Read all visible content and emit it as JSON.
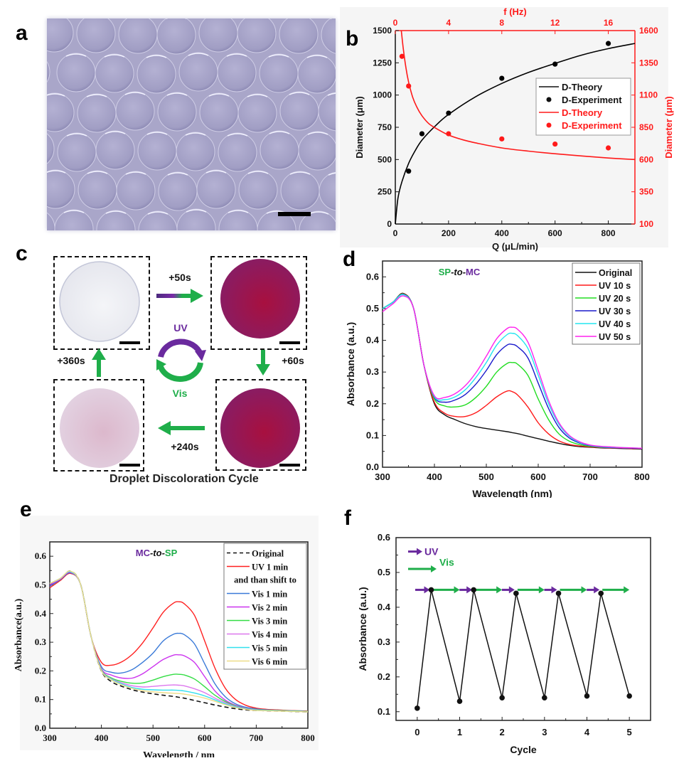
{
  "panels": {
    "a": {
      "label": "a",
      "description": "Microscope image of packed droplets with scale bar"
    },
    "b": {
      "label": "b"
    },
    "c": {
      "label": "c",
      "caption": "Droplet Discoloration Cycle",
      "steps": [
        "+50s",
        "+60s",
        "+240s",
        "+360s"
      ],
      "cycle_labels": {
        "uv": "UV",
        "vis": "Vis"
      },
      "colors": {
        "uv": "#6a2a9e",
        "vis": "#1fae4a",
        "droplet_colored": "#9c1350",
        "droplet_faded": "#d9b9d2",
        "droplet_clear": "#eef0f4"
      }
    },
    "d": {
      "label": "d"
    },
    "e": {
      "label": "e"
    },
    "f": {
      "label": "f"
    }
  },
  "chart_data": [
    {
      "id": "b",
      "type": "scatter",
      "title": "",
      "xlabel": "Q (μL/min)",
      "ylabel": "Diameter (μm)",
      "x2label": "f (Hz)",
      "y2label": "Diameter (μm)",
      "xlim": [
        0,
        900
      ],
      "ylim": [
        0,
        1500
      ],
      "x2lim": [
        0,
        18
      ],
      "y2lim": [
        100,
        1600
      ],
      "xticks": [
        "0",
        "200",
        "400",
        "600",
        "800"
      ],
      "yticks": [
        "0",
        "250",
        "500",
        "750",
        "1000",
        "1250",
        "1500"
      ],
      "x2ticks": [
        "0",
        "4",
        "8",
        "12",
        "16"
      ],
      "y2ticks": [
        "100",
        "350",
        "600",
        "850",
        "1100",
        "1350",
        "1600"
      ],
      "legend": [
        "D-Theory",
        "D-Experiment",
        "D-Theory",
        "D-Experiment"
      ],
      "legend_position": "center-right",
      "series": [
        {
          "name": "D-Theory",
          "axis": "primary",
          "color": "#000000",
          "style": "line",
          "x": [
            0,
            10,
            25,
            50,
            75,
            100,
            150,
            200,
            300,
            400,
            500,
            600,
            700,
            800,
            900
          ],
          "y": [
            0,
            200,
            330,
            470,
            570,
            650,
            760,
            850,
            985,
            1090,
            1175,
            1245,
            1310,
            1360,
            1400
          ]
        },
        {
          "name": "D-Experiment",
          "axis": "primary",
          "color": "#000000",
          "style": "marker",
          "x": [
            50,
            100,
            200,
            400,
            600,
            800
          ],
          "y": [
            410,
            700,
            860,
            1130,
            1240,
            1400
          ]
        },
        {
          "name": "D-Theory",
          "axis": "secondary",
          "color": "#ff1a1a",
          "style": "line",
          "x": [
            0.45,
            0.6,
            0.8,
            1.0,
            1.3,
            1.6,
            2,
            2.5,
            3,
            4,
            5,
            6,
            8,
            10,
            12,
            14,
            16,
            18
          ],
          "y": [
            1600,
            1460,
            1310,
            1200,
            1085,
            1010,
            940,
            880,
            845,
            790,
            755,
            730,
            690,
            665,
            645,
            628,
            612,
            600
          ]
        },
        {
          "name": "D-Experiment",
          "axis": "secondary",
          "color": "#ff1a1a",
          "style": "marker",
          "x": [
            0.5,
            1,
            4,
            8,
            12,
            16
          ],
          "y": [
            1400,
            1170,
            800,
            760,
            720,
            690
          ]
        }
      ]
    },
    {
      "id": "d",
      "type": "line",
      "title": "SP-to-MC",
      "title_parts": [
        {
          "text": "SP",
          "color": "#1fae4a"
        },
        {
          "text": "-to-",
          "color": "#111111"
        },
        {
          "text": "MC",
          "color": "#6a2a9e"
        }
      ],
      "xlabel": "Wavelength (nm)",
      "ylabel": "Absorbance (a.u.)",
      "xlim": [
        300,
        800
      ],
      "ylim": [
        0.0,
        0.65
      ],
      "xticks": [
        "300",
        "400",
        "500",
        "600",
        "700",
        "800"
      ],
      "yticks": [
        "0.0",
        "0.1",
        "0.2",
        "0.3",
        "0.4",
        "0.5",
        "0.6"
      ],
      "legend_position": "top-right",
      "x": [
        300,
        320,
        340,
        360,
        380,
        400,
        420,
        440,
        460,
        480,
        500,
        520,
        540,
        550,
        560,
        580,
        600,
        620,
        640,
        660,
        680,
        700,
        720,
        740,
        760,
        780,
        800
      ],
      "series": [
        {
          "name": "Original",
          "color": "#111111",
          "values": [
            0.5,
            0.52,
            0.548,
            0.5,
            0.32,
            0.2,
            0.165,
            0.15,
            0.137,
            0.128,
            0.122,
            0.117,
            0.112,
            0.109,
            0.106,
            0.098,
            0.09,
            0.082,
            0.075,
            0.069,
            0.065,
            0.063,
            0.061,
            0.06,
            0.059,
            0.058,
            0.057
          ]
        },
        {
          "name": "UV  10 s",
          "color": "#ff1a1a",
          "values": [
            0.5,
            0.52,
            0.547,
            0.5,
            0.32,
            0.205,
            0.17,
            0.16,
            0.16,
            0.172,
            0.195,
            0.222,
            0.24,
            0.238,
            0.228,
            0.19,
            0.14,
            0.105,
            0.083,
            0.072,
            0.067,
            0.064,
            0.062,
            0.061,
            0.06,
            0.059,
            0.058
          ]
        },
        {
          "name": "UV  20 s",
          "color": "#22dd22",
          "values": [
            0.5,
            0.52,
            0.546,
            0.5,
            0.32,
            0.215,
            0.193,
            0.19,
            0.197,
            0.22,
            0.255,
            0.3,
            0.327,
            0.33,
            0.325,
            0.29,
            0.215,
            0.15,
            0.105,
            0.082,
            0.071,
            0.066,
            0.063,
            0.062,
            0.061,
            0.06,
            0.059
          ]
        },
        {
          "name": "UV  30 s",
          "color": "#1a1acc",
          "values": [
            0.5,
            0.52,
            0.545,
            0.5,
            0.32,
            0.22,
            0.205,
            0.212,
            0.23,
            0.262,
            0.305,
            0.355,
            0.385,
            0.387,
            0.38,
            0.345,
            0.265,
            0.185,
            0.125,
            0.092,
            0.076,
            0.068,
            0.064,
            0.062,
            0.061,
            0.06,
            0.059
          ]
        },
        {
          "name": "UV  40 s",
          "color": "#22e5f0",
          "values": [
            0.5,
            0.52,
            0.544,
            0.5,
            0.32,
            0.222,
            0.213,
            0.222,
            0.245,
            0.283,
            0.33,
            0.385,
            0.418,
            0.422,
            0.415,
            0.375,
            0.29,
            0.2,
            0.135,
            0.097,
            0.078,
            0.069,
            0.065,
            0.063,
            0.062,
            0.061,
            0.06
          ]
        },
        {
          "name": "UV  50 s",
          "color": "#ff22ee",
          "values": [
            0.49,
            0.515,
            0.54,
            0.5,
            0.32,
            0.225,
            0.22,
            0.232,
            0.258,
            0.298,
            0.35,
            0.405,
            0.437,
            0.441,
            0.435,
            0.395,
            0.305,
            0.21,
            0.14,
            0.1,
            0.08,
            0.07,
            0.066,
            0.064,
            0.062,
            0.061,
            0.06
          ]
        }
      ]
    },
    {
      "id": "e",
      "type": "line",
      "title": "MC-to-SP",
      "title_parts": [
        {
          "text": "MC",
          "color": "#6a2a9e"
        },
        {
          "text": "-to-",
          "color": "#111111"
        },
        {
          "text": "SP",
          "color": "#1fae4a"
        }
      ],
      "xlabel": "Wavelength / nm",
      "ylabel": "Absorbance(a.u.)",
      "xlim": [
        300,
        800
      ],
      "ylim": [
        0.0,
        0.65
      ],
      "xticks": [
        "300",
        "400",
        "500",
        "600",
        "700",
        "800"
      ],
      "yticks": [
        "0.0",
        "0.1",
        "0.2",
        "0.3",
        "0.4",
        "0.5",
        "0.6"
      ],
      "legend_position": "top-right",
      "legend_note": "and than shift to",
      "x": [
        300,
        320,
        340,
        360,
        380,
        400,
        420,
        440,
        460,
        480,
        500,
        520,
        540,
        550,
        560,
        580,
        600,
        620,
        640,
        660,
        680,
        700,
        720,
        740,
        760,
        780,
        800
      ],
      "series": [
        {
          "name": "Original",
          "color": "#111111",
          "dash": true,
          "values": [
            0.5,
            0.52,
            0.548,
            0.5,
            0.32,
            0.2,
            0.162,
            0.146,
            0.134,
            0.126,
            0.12,
            0.115,
            0.111,
            0.108,
            0.105,
            0.097,
            0.089,
            0.081,
            0.074,
            0.068,
            0.064,
            0.062,
            0.061,
            0.06,
            0.059,
            0.058,
            0.057
          ]
        },
        {
          "name": "UV  1 min",
          "color": "#ff2020",
          "values": [
            0.49,
            0.515,
            0.54,
            0.5,
            0.32,
            0.23,
            0.22,
            0.232,
            0.258,
            0.298,
            0.35,
            0.405,
            0.437,
            0.441,
            0.435,
            0.395,
            0.305,
            0.21,
            0.14,
            0.1,
            0.08,
            0.07,
            0.066,
            0.064,
            0.062,
            0.061,
            0.06
          ]
        },
        {
          "name": "Vis  1 min",
          "color": "#3a7ad8",
          "values": [
            0.495,
            0.518,
            0.542,
            0.5,
            0.32,
            0.215,
            0.195,
            0.193,
            0.205,
            0.23,
            0.262,
            0.305,
            0.328,
            0.331,
            0.327,
            0.295,
            0.225,
            0.155,
            0.11,
            0.085,
            0.073,
            0.067,
            0.064,
            0.062,
            0.061,
            0.06,
            0.059
          ]
        },
        {
          "name": "Vis  2 min",
          "color": "#cc33ee",
          "values": [
            0.5,
            0.52,
            0.544,
            0.5,
            0.32,
            0.208,
            0.185,
            0.175,
            0.175,
            0.19,
            0.215,
            0.24,
            0.255,
            0.256,
            0.253,
            0.23,
            0.18,
            0.13,
            0.098,
            0.08,
            0.07,
            0.065,
            0.063,
            0.062,
            0.061,
            0.06,
            0.059
          ]
        },
        {
          "name": "Vis  3 min",
          "color": "#33dd44",
          "values": [
            0.505,
            0.522,
            0.546,
            0.5,
            0.32,
            0.205,
            0.175,
            0.163,
            0.157,
            0.158,
            0.168,
            0.18,
            0.188,
            0.188,
            0.186,
            0.172,
            0.145,
            0.115,
            0.093,
            0.078,
            0.069,
            0.065,
            0.063,
            0.062,
            0.061,
            0.06,
            0.059
          ]
        },
        {
          "name": "Vis  4 min",
          "color": "#dd77ee",
          "values": [
            0.505,
            0.522,
            0.546,
            0.5,
            0.32,
            0.203,
            0.172,
            0.158,
            0.148,
            0.144,
            0.146,
            0.149,
            0.151,
            0.15,
            0.148,
            0.138,
            0.124,
            0.105,
            0.089,
            0.076,
            0.068,
            0.064,
            0.062,
            0.061,
            0.06,
            0.059,
            0.058
          ]
        },
        {
          "name": "Vis  5 min",
          "color": "#33e0ee",
          "values": [
            0.505,
            0.522,
            0.546,
            0.5,
            0.32,
            0.202,
            0.17,
            0.154,
            0.142,
            0.136,
            0.134,
            0.133,
            0.133,
            0.132,
            0.13,
            0.123,
            0.113,
            0.099,
            0.085,
            0.074,
            0.067,
            0.063,
            0.062,
            0.061,
            0.06,
            0.059,
            0.058
          ]
        },
        {
          "name": "Vis  6 min",
          "color": "#eedd88",
          "values": [
            0.505,
            0.522,
            0.548,
            0.5,
            0.32,
            0.201,
            0.168,
            0.151,
            0.139,
            0.131,
            0.127,
            0.124,
            0.122,
            0.121,
            0.119,
            0.113,
            0.105,
            0.094,
            0.082,
            0.072,
            0.066,
            0.062,
            0.061,
            0.06,
            0.059,
            0.058,
            0.057
          ]
        }
      ]
    },
    {
      "id": "f",
      "type": "line",
      "title": "",
      "xlabel": "Cycle",
      "ylabel": "Absorbance (a.u.)",
      "xlim": [
        -0.5,
        5.5
      ],
      "ylim": [
        0.075,
        0.6
      ],
      "xticks": [
        "0",
        "1",
        "2",
        "3",
        "4",
        "5"
      ],
      "yticks": [
        "0.1",
        "0.2",
        "0.3",
        "0.4",
        "0.5",
        "0.6"
      ],
      "legend": [
        {
          "name": "UV",
          "color": "#6a2a9e"
        },
        {
          "name": "Vis",
          "color": "#1fae4a"
        }
      ],
      "legend_position": "top-left",
      "arrow_row_level": 0.45,
      "series": [
        {
          "name": "Absorbance",
          "color": "#111111",
          "x": [
            0,
            0.33,
            1,
            1.33,
            2,
            2.33,
            3,
            3.33,
            4,
            4.33,
            5
          ],
          "y": [
            0.11,
            0.45,
            0.13,
            0.45,
            0.14,
            0.44,
            0.14,
            0.44,
            0.145,
            0.44,
            0.145
          ]
        }
      ]
    }
  ]
}
